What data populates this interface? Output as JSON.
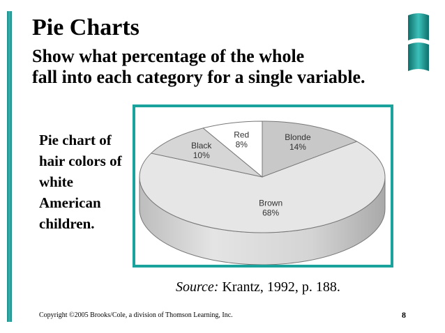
{
  "slide": {
    "title": "Pie Charts",
    "subtitle_lines": [
      "Show what percentage of the whole",
      "fall into each category for a single variable."
    ],
    "caption": "Pie chart of hair colors of white American children.",
    "source_label": "Source:",
    "source_text": "Krantz, 1992, p. 188.",
    "copyright": "Copyright ©2005 Brooks/Cole, a division of Thomson Learning, Inc.",
    "page_number": "8",
    "accent_color": "#1aa29d"
  },
  "chart_data": {
    "type": "pie",
    "title": "",
    "style": "3d-tilted",
    "categories": [
      "Brown",
      "Blonde",
      "Red",
      "Black"
    ],
    "values": [
      68,
      14,
      8,
      10
    ],
    "labels": [
      "68%",
      "14%",
      "8%",
      "10%"
    ],
    "colors": [
      "#e6e6e6",
      "#c8c8c8",
      "#ffffff",
      "#d6d6d6"
    ],
    "side_color": "#cfcfcf",
    "edge_color": "#777777"
  }
}
